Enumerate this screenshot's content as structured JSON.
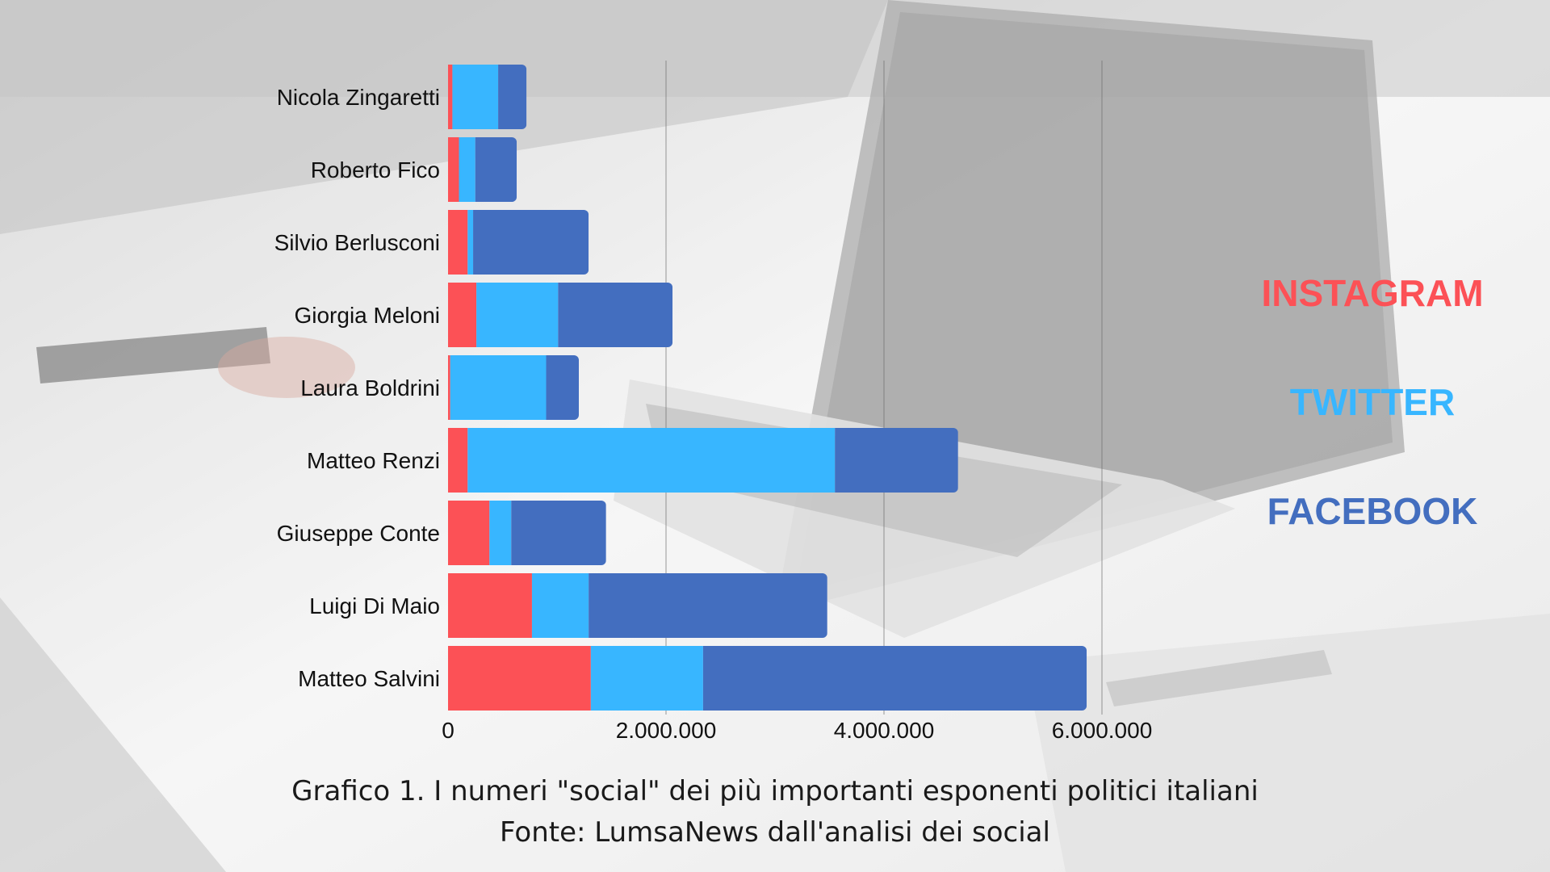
{
  "colors": {
    "instagram": "#fc5156",
    "twitter": "#38b6ff",
    "facebook": "#436ebf"
  },
  "legend": {
    "instagram": "INSTAGRAM",
    "twitter": "TWITTER",
    "facebook": "FACEBOOK"
  },
  "caption": {
    "line1": "Grafico 1. I numeri \"social\" dei più importanti esponenti politici italiani",
    "line2": "Fonte: LumsaNews dall'analisi dei social"
  },
  "chart_data": {
    "type": "bar",
    "orientation": "horizontal",
    "stacked": true,
    "categories": [
      "Nicola Zingaretti",
      "Roberto Fico",
      "Silvio Berlusconi",
      "Giorgia Meloni",
      "Laura Boldrini",
      "Matteo Renzi",
      "Giuseppe Conte",
      "Luigi Di Maio",
      "Matteo Salvini"
    ],
    "series": [
      {
        "name": "INSTAGRAM",
        "color": "#fc5156",
        "values": [
          40000,
          100000,
          180000,
          260000,
          20000,
          180000,
          380000,
          770000,
          1310000
        ]
      },
      {
        "name": "TWITTER",
        "color": "#38b6ff",
        "values": [
          420000,
          150000,
          50000,
          750000,
          880000,
          3370000,
          200000,
          520000,
          1030000
        ]
      },
      {
        "name": "FACEBOOK",
        "color": "#436ebf",
        "values": [
          260000,
          380000,
          1060000,
          1050000,
          300000,
          1130000,
          870000,
          2190000,
          3520000
        ]
      }
    ],
    "xlim": [
      0,
      6000000
    ],
    "xticks": [
      0,
      2000000,
      4000000,
      6000000
    ],
    "xtick_labels": [
      "0",
      "2.000.000",
      "4.000.000",
      "6.000.000"
    ],
    "grid": "vertical",
    "legend_position": "right"
  }
}
